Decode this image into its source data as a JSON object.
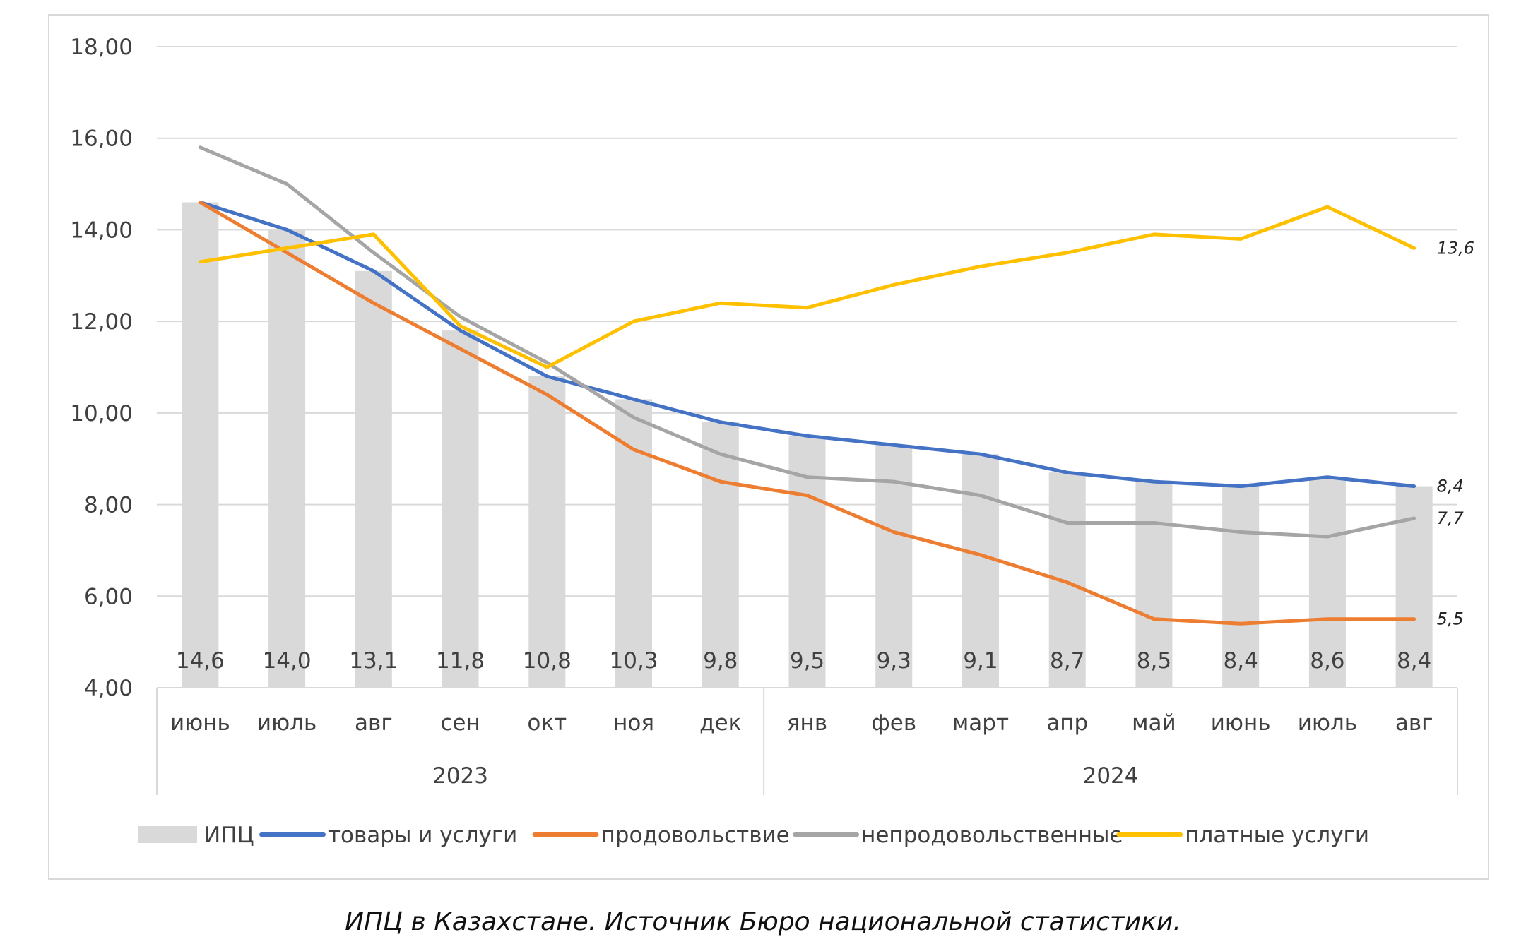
{
  "caption": "ИПЦ в Казахстане. Источник Бюро национальной  статистики.",
  "chart_data": {
    "type": "bar+line",
    "title": "",
    "xlabel": "",
    "ylabel": "",
    "ylim": [
      4,
      18
    ],
    "yticks": [
      "4,00",
      "6,00",
      "8,00",
      "10,00",
      "12,00",
      "14,00",
      "16,00",
      "18,00"
    ],
    "ytick_values": [
      4,
      6,
      8,
      10,
      12,
      14,
      16,
      18
    ],
    "grid": true,
    "legend_position": "bottom",
    "categories": [
      "июнь",
      "июль",
      "авг",
      "сен",
      "окт",
      "ноя",
      "дек",
      "янв",
      "фев",
      "март",
      "апр",
      "май",
      "июнь",
      "июль",
      "авг"
    ],
    "year_groups": [
      {
        "label": "2023",
        "start": 0,
        "end": 6
      },
      {
        "label": "2024",
        "start": 7,
        "end": 14
      }
    ],
    "bars": {
      "name": "ИПЦ",
      "color": "#d9d9d9",
      "values": [
        14.6,
        14.0,
        13.1,
        11.8,
        10.8,
        10.3,
        9.8,
        9.5,
        9.3,
        9.1,
        8.7,
        8.5,
        8.4,
        8.6,
        8.4
      ],
      "labels": [
        "14,6",
        "14,0",
        "13,1",
        "11,8",
        "10,8",
        "10,3",
        "9,8",
        "9,5",
        "9,3",
        "9,1",
        "8,7",
        "8,5",
        "8,4",
        "8,6",
        "8,4"
      ]
    },
    "series": [
      {
        "name": "товары и услуги",
        "color": "#4472c4",
        "values": [
          14.6,
          14.0,
          13.1,
          11.8,
          10.8,
          10.3,
          9.8,
          9.5,
          9.3,
          9.1,
          8.7,
          8.5,
          8.4,
          8.6,
          8.4
        ],
        "end_label": "8,4"
      },
      {
        "name": "продовольствие",
        "color": "#ed7d31",
        "values": [
          14.6,
          13.5,
          12.4,
          11.4,
          10.4,
          9.2,
          8.5,
          8.2,
          7.4,
          6.9,
          6.3,
          5.5,
          5.4,
          5.5,
          5.5
        ],
        "end_label": "5,5"
      },
      {
        "name": "непродовольственные",
        "color": "#a5a5a5",
        "values": [
          15.8,
          15.0,
          13.5,
          12.1,
          11.1,
          9.9,
          9.1,
          8.6,
          8.5,
          8.2,
          7.6,
          7.6,
          7.4,
          7.3,
          7.7
        ],
        "end_label": "7,7"
      },
      {
        "name": "платные услуги",
        "color": "#ffc000",
        "values": [
          13.3,
          13.6,
          13.9,
          11.9,
          11.0,
          12.0,
          12.4,
          12.3,
          12.8,
          13.2,
          13.5,
          13.9,
          13.8,
          14.5,
          13.6
        ],
        "end_label": "13,6"
      }
    ]
  }
}
